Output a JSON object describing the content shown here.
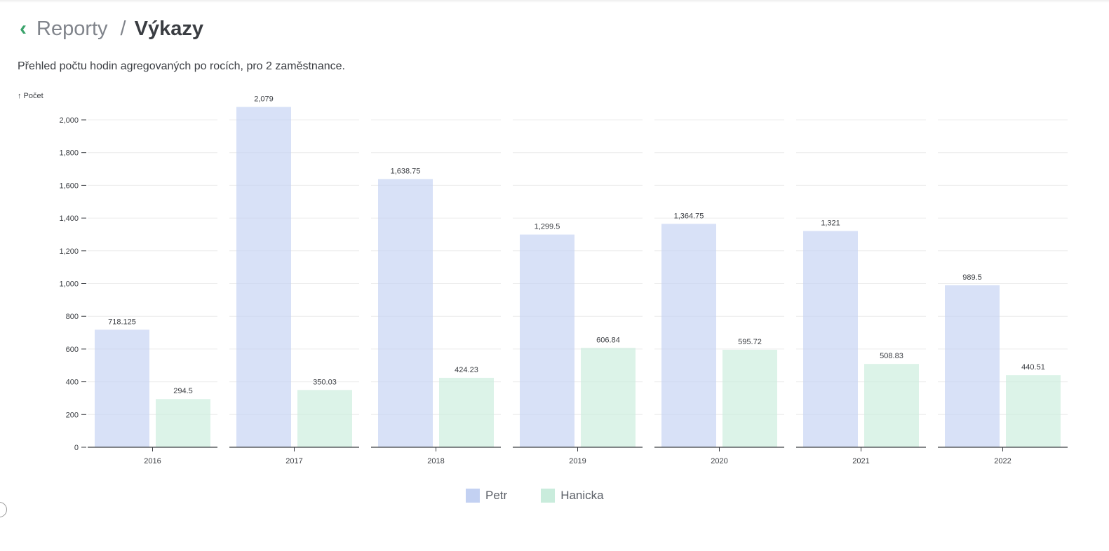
{
  "header": {
    "back_icon": "chevron-left-icon",
    "parent": "Reporty",
    "separator": "/",
    "title": "Výkazy"
  },
  "description": "Přehled počtu hodin agregovaných po rocích, pro 2 zaměstnance.",
  "chart_data": {
    "type": "bar",
    "ylabel": "↑ Počet",
    "ylim": [
      0,
      2100
    ],
    "yticks": [
      0,
      200,
      400,
      600,
      800,
      1000,
      1200,
      1400,
      1600,
      1800,
      2000
    ],
    "ytick_labels": [
      "0",
      "200",
      "400",
      "600",
      "800",
      "1,000",
      "1,200",
      "1,400",
      "1,600",
      "1,800",
      "2,000"
    ],
    "categories": [
      "2016",
      "2017",
      "2018",
      "2019",
      "2020",
      "2021",
      "2022"
    ],
    "grid": true,
    "legend_position": "bottom",
    "series": [
      {
        "name": "Petr",
        "color": "#c3d1f2",
        "values": [
          718.125,
          2079,
          1638.75,
          1299.5,
          1364.75,
          1321,
          989.5
        ],
        "labels": [
          "718.125",
          "2,079",
          "1,638.75",
          "1,299.5",
          "1,364.75",
          "1,321",
          "989.5"
        ]
      },
      {
        "name": "Hanicka",
        "color": "#c9ecdc",
        "values": [
          294.5,
          350.03,
          424.23,
          606.84,
          595.72,
          508.83,
          440.51
        ],
        "labels": [
          "294.5",
          "350.03",
          "424.23",
          "606.84",
          "595.72",
          "508.83",
          "440.51"
        ]
      }
    ]
  }
}
